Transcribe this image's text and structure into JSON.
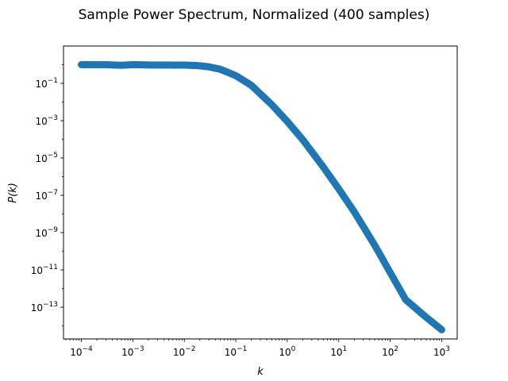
{
  "chart_data": {
    "type": "scatter",
    "title": "Sample Power Spectrum, Normalized (400 samples)",
    "xlabel": "k",
    "ylabel": "P(k)",
    "xscale": "log",
    "yscale": "log",
    "xlim": [
      4.5e-05,
      2000
    ],
    "ylim": [
      2e-15,
      10.0
    ],
    "xticks": [
      {
        "value": 0.0001,
        "base": "10",
        "exp": "−4"
      },
      {
        "value": 0.001,
        "base": "10",
        "exp": "−3"
      },
      {
        "value": 0.01,
        "base": "10",
        "exp": "−2"
      },
      {
        "value": 0.1,
        "base": "10",
        "exp": "−1"
      },
      {
        "value": 1.0,
        "base": "10",
        "exp": "0"
      },
      {
        "value": 10.0,
        "base": "10",
        "exp": "1"
      },
      {
        "value": 100.0,
        "base": "10",
        "exp": "2"
      },
      {
        "value": 1000.0,
        "base": "10",
        "exp": "3"
      }
    ],
    "yticks": [
      {
        "value": 0.1,
        "base": "10",
        "exp": "−1"
      },
      {
        "value": 0.001,
        "base": "10",
        "exp": "−3"
      },
      {
        "value": 1e-05,
        "base": "10",
        "exp": "−5"
      },
      {
        "value": 1e-07,
        "base": "10",
        "exp": "−7"
      },
      {
        "value": 1e-09,
        "base": "10",
        "exp": "−9"
      },
      {
        "value": 1e-11,
        "base": "10",
        "exp": "−11"
      },
      {
        "value": 1e-13,
        "base": "10",
        "exp": "−13"
      }
    ],
    "grid": false,
    "marker_color": "#1f77b4",
    "series": [
      {
        "x": [
          0.0001,
          0.0003,
          0.0006,
          0.001,
          0.002,
          0.005,
          0.01,
          0.015,
          0.02,
          0.03,
          0.05,
          0.1,
          0.2,
          0.5,
          1,
          2,
          5,
          10,
          20,
          50,
          100,
          200,
          500,
          1000
        ],
        "y": [
          1.0,
          1.0,
          0.93,
          1.0,
          0.97,
          0.96,
          0.95,
          0.92,
          0.87,
          0.77,
          0.57,
          0.26,
          0.079,
          0.0072,
          0.00091,
          9.5e-05,
          3.3e-06,
          2.2e-07,
          1.3e-08,
          2.1e-10,
          7.2e-12,
          2.5e-13,
          2.9e-14,
          6.2e-15
        ]
      }
    ]
  }
}
